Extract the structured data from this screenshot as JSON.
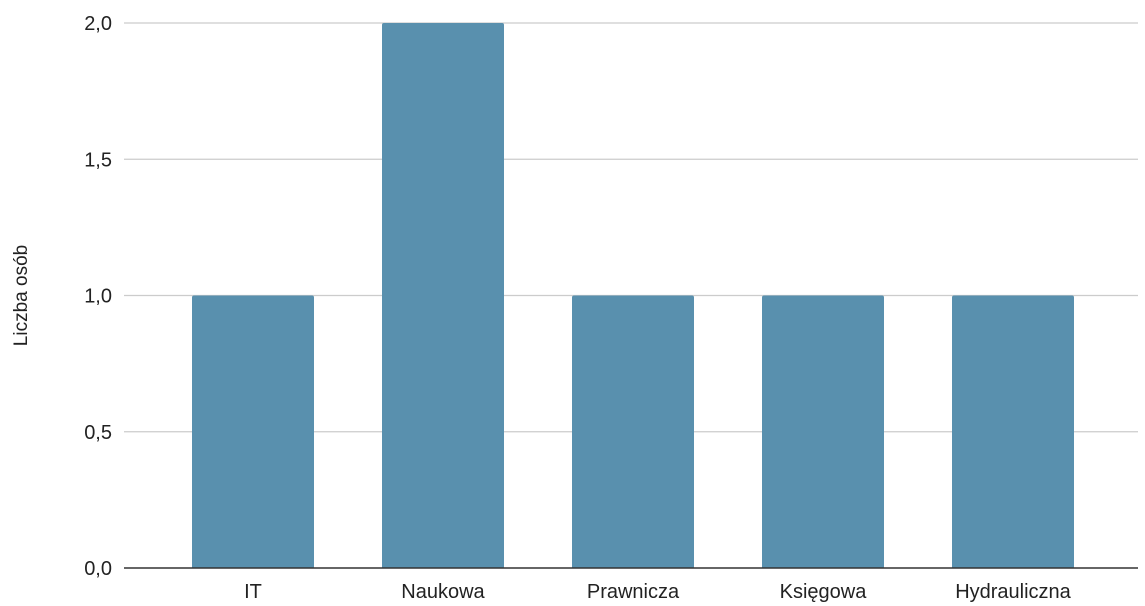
{
  "chart_data": {
    "type": "bar",
    "title": "",
    "xlabel": "",
    "ylabel": "Liczba osób",
    "categories": [
      "IT",
      "Naukowa",
      "Prawnicza",
      "Księgowa",
      "Hydrauliczna"
    ],
    "values": [
      1,
      2,
      1,
      1,
      1
    ],
    "ylim": [
      0,
      2
    ],
    "yticks": [
      0,
      0.5,
      1,
      1.5,
      2
    ],
    "ytick_labels": [
      "0,0",
      "0,5",
      "1,0",
      "1,5",
      "2,0"
    ],
    "grid": true,
    "legend": "none",
    "colors": {
      "bar": "#5990AE",
      "grid": "#CCCCCC",
      "axis": "#333333"
    }
  }
}
